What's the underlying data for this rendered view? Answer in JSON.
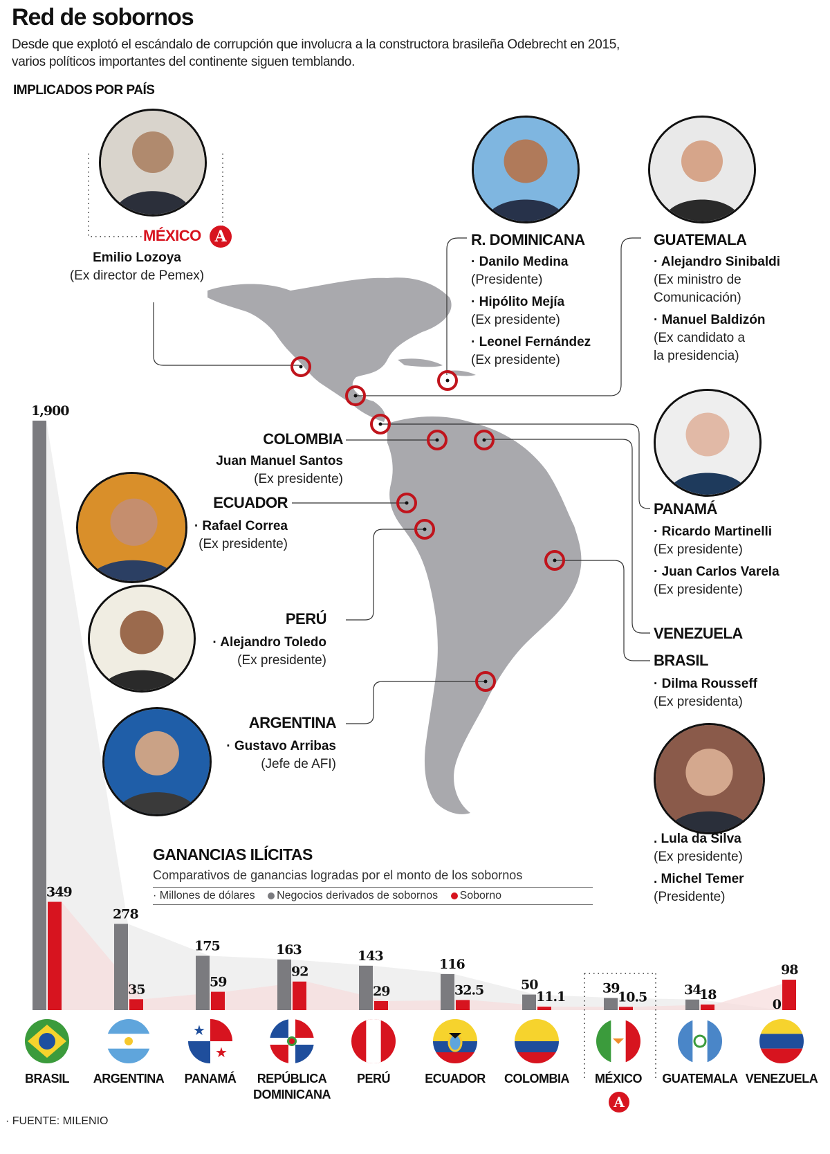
{
  "header": {
    "title": "Red de sobornos",
    "subtitle_line1": "Desde que explotó el escándalo de corrupción que involucra a la constructora brasileña Odebrecht en 2015,",
    "subtitle_line2": "varios políticos importantes del continente siguen temblando.",
    "section_label": "IMPLICADOS POR PAÍS"
  },
  "colors": {
    "accent_red": "#d7141f",
    "bar_gray": "#7b7b7f",
    "map_gray": "#a9a9ad",
    "text": "#111111"
  },
  "implicados": {
    "mexico": {
      "country": "MÉXICO",
      "badge": "A",
      "people": [
        {
          "name": "Emilio Lozoya",
          "role": "(Ex director de Pemex)"
        }
      ]
    },
    "rdominicana": {
      "country": "R. DOMINICANA",
      "people": [
        {
          "name": "· Danilo Medina",
          "role": "(Presidente)"
        },
        {
          "name": "· Hipólito Mejía",
          "role": "(Ex presidente)"
        },
        {
          "name": "· Leonel Fernández",
          "role": "(Ex presidente)"
        }
      ]
    },
    "guatemala": {
      "country": "GUATEMALA",
      "people": [
        {
          "name": "· Alejandro Sinibaldi",
          "role": "(Ex ministro de",
          "role2": "Comunicación)"
        },
        {
          "name": "· Manuel Baldizón",
          "role": "(Ex candidato a",
          "role2": "la presidencia)"
        }
      ]
    },
    "colombia": {
      "country": "COLOMBIA",
      "people": [
        {
          "name": "Juan Manuel Santos",
          "role": "(Ex presidente)"
        }
      ]
    },
    "ecuador": {
      "country": "ECUADOR",
      "people": [
        {
          "name": "· Rafael Correa",
          "role": "(Ex presidente)"
        }
      ]
    },
    "peru": {
      "country": "PERÚ",
      "people": [
        {
          "name": "· Alejandro Toledo",
          "role": "(Ex presidente)"
        }
      ]
    },
    "argentina": {
      "country": "ARGENTINA",
      "people": [
        {
          "name": "· Gustavo Arribas",
          "role": "(Jefe de AFI)"
        }
      ]
    },
    "panama": {
      "country": "PANAMÁ",
      "people": [
        {
          "name": "· Ricardo Martinelli",
          "role": "(Ex presidente)"
        },
        {
          "name": "· Juan Carlos Varela",
          "role": "(Ex presidente)"
        }
      ]
    },
    "venezuela": {
      "country": "VENEZUELA"
    },
    "brasil": {
      "country": "BRASIL",
      "people": [
        {
          "name": "· Dilma Rousseff",
          "role": "(Ex presidenta)"
        },
        {
          "name": ". Lula da Silva",
          "role": "(Ex presidente)"
        },
        {
          "name": ". Michel Temer",
          "role": "(Presidente)"
        }
      ]
    }
  },
  "chart": {
    "title": "GANANCIAS ILÍCITAS",
    "subtitle": "Comparativos de ganancias logradas por el monto de los sobornos",
    "legend_units": "· Millones de dólares",
    "legend_gray": "Negocios derivados de sobornos",
    "legend_red": "Soborno",
    "source_prefix": "· FUENTE:",
    "source_name": "MILENIO",
    "country_labels": [
      "BRASIL",
      "ARGENTINA",
      "PANAMÁ",
      "REPÚBLICA DOMINICANA",
      "PERÚ",
      "ECUADOR",
      "COLOMBIA",
      "MÉXICO",
      "GUATEMALA",
      "VENEZUELA"
    ],
    "value_labels_gray": [
      "1,900",
      "278",
      "175",
      "163",
      "143",
      "116",
      "50",
      "39",
      "34",
      "0"
    ],
    "value_labels_red": [
      "349",
      "35",
      "59",
      "92",
      "29",
      "32.5",
      "11.1",
      "10.5",
      "18",
      "98"
    ],
    "mexico_badge": "A"
  },
  "chart_data": {
    "type": "bar",
    "title": "GANANCIAS ILÍCITAS",
    "subtitle": "Comparativos de ganancias logradas por el monto de los sobornos",
    "xlabel": "",
    "ylabel": "Millones de dólares",
    "categories": [
      "Brasil",
      "Argentina",
      "Panamá",
      "República Dominicana",
      "Perú",
      "Ecuador",
      "Colombia",
      "México",
      "Guatemala",
      "Venezuela"
    ],
    "series": [
      {
        "name": "Negocios derivados de sobornos",
        "color": "#7b7b7f",
        "values": [
          1900,
          278,
          175,
          163,
          143,
          116,
          50,
          39,
          34,
          0
        ]
      },
      {
        "name": "Soborno",
        "color": "#d7141f",
        "values": [
          349,
          35,
          59,
          92,
          29,
          32.5,
          11.1,
          10.5,
          18,
          98
        ]
      }
    ],
    "ylim": [
      0,
      1900
    ],
    "grid": false,
    "legend": "top",
    "highlighted_category": "México"
  }
}
